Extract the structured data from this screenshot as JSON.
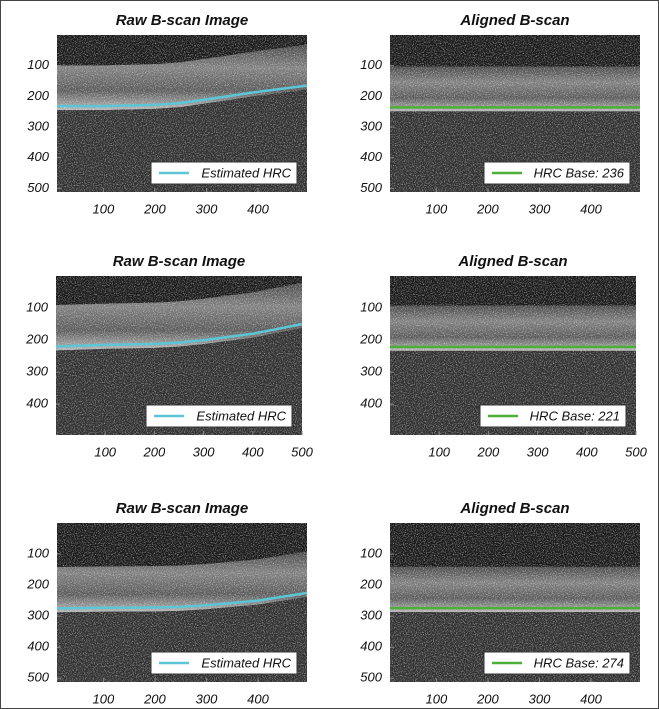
{
  "chart_data": [
    {
      "type": "line",
      "title": "Raw B-scan Image",
      "xlim": [
        10,
        495
      ],
      "ylim": [
        0,
        512
      ],
      "xticks": [
        100,
        200,
        300,
        400
      ],
      "yticks": [
        100,
        200,
        300,
        400,
        500
      ],
      "series": [
        {
          "name": "Estimated HRC",
          "color": "#5cc6d6",
          "x": [
            10,
            100,
            200,
            250,
            300,
            400,
            495
          ],
          "values": [
            232,
            232,
            228,
            222,
            210,
            185,
            165
          ]
        }
      ]
    },
    {
      "type": "line",
      "title": "Aligned B-scan",
      "xlim": [
        10,
        495
      ],
      "ylim": [
        0,
        512
      ],
      "xticks": [
        100,
        200,
        300,
        400
      ],
      "yticks": [
        100,
        200,
        300,
        400,
        500
      ],
      "series": [
        {
          "name": "HRC Base: 236",
          "color": "#4cb038",
          "x": [
            10,
            495
          ],
          "values": [
            236,
            236
          ]
        }
      ]
    },
    {
      "type": "line",
      "title": "Raw B-scan Image",
      "xlim": [
        0,
        500
      ],
      "ylim": [
        0,
        496
      ],
      "xticks": [
        100,
        200,
        300,
        400,
        500
      ],
      "yticks": [
        100,
        200,
        300,
        400
      ],
      "series": [
        {
          "name": "Estimated HRC",
          "color": "#5cc6d6",
          "x": [
            0,
            100,
            200,
            250,
            300,
            400,
            500
          ],
          "values": [
            220,
            215,
            212,
            208,
            200,
            180,
            150
          ]
        }
      ]
    },
    {
      "type": "line",
      "title": "Aligned B-scan",
      "xlim": [
        0,
        500
      ],
      "ylim": [
        0,
        496
      ],
      "xticks": [
        100,
        200,
        300,
        400,
        500
      ],
      "yticks": [
        100,
        200,
        300,
        400
      ],
      "series": [
        {
          "name": "HRC Base: 221",
          "color": "#4cb038",
          "x": [
            0,
            500
          ],
          "values": [
            221,
            221
          ]
        }
      ]
    },
    {
      "type": "line",
      "title": "Raw B-scan Image",
      "xlim": [
        10,
        495
      ],
      "ylim": [
        0,
        512
      ],
      "xticks": [
        100,
        200,
        300,
        400
      ],
      "yticks": [
        100,
        200,
        300,
        400,
        500
      ],
      "series": [
        {
          "name": "Estimated HRC",
          "color": "#5cc6d6",
          "x": [
            10,
            100,
            200,
            250,
            300,
            400,
            495
          ],
          "values": [
            275,
            273,
            272,
            270,
            265,
            250,
            225
          ]
        }
      ]
    },
    {
      "type": "line",
      "title": "Aligned B-scan",
      "xlim": [
        10,
        495
      ],
      "ylim": [
        0,
        512
      ],
      "xticks": [
        100,
        200,
        300,
        400
      ],
      "yticks": [
        100,
        200,
        300,
        400,
        500
      ],
      "series": [
        {
          "name": "HRC Base: 274",
          "color": "#4cb038",
          "x": [
            10,
            495
          ],
          "values": [
            274,
            274
          ]
        }
      ]
    }
  ]
}
